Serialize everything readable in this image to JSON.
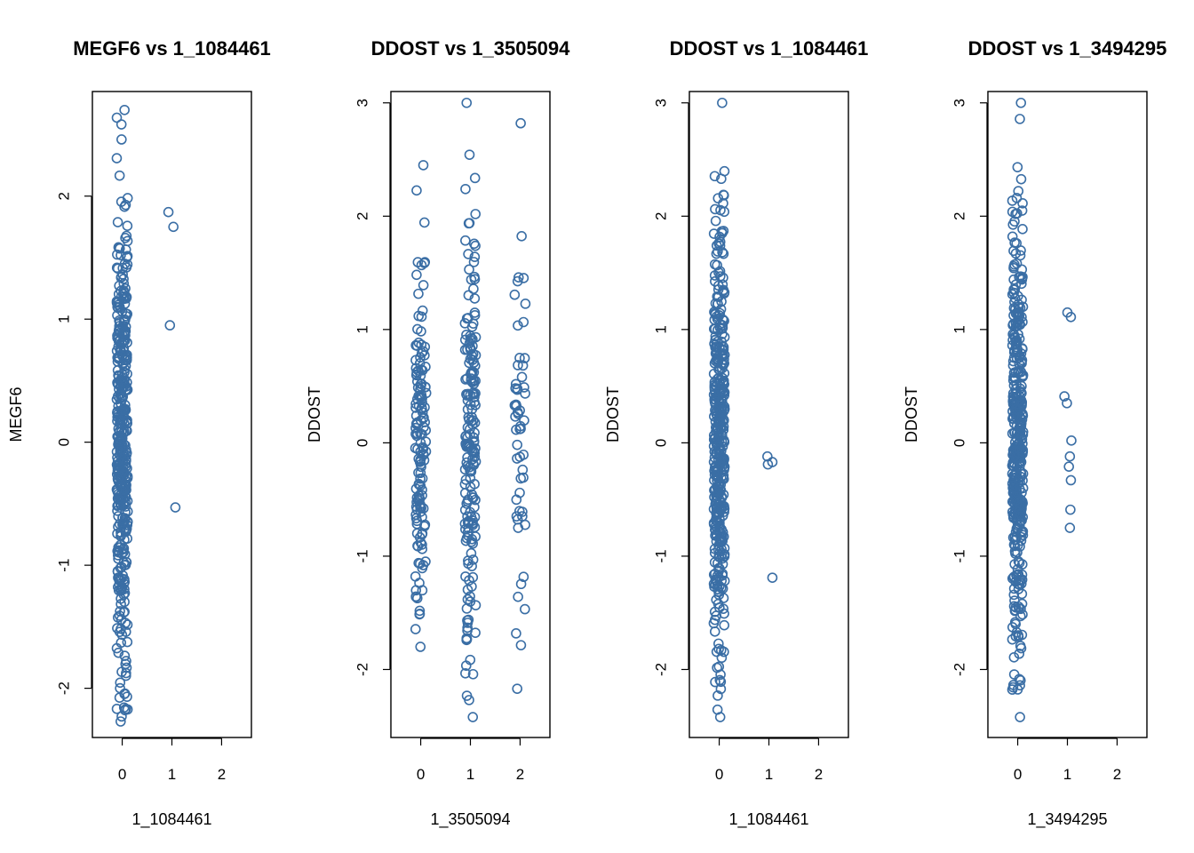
{
  "colors": {
    "point": "#3A6EA5",
    "axis": "#000000",
    "background": "#ffffff"
  },
  "chart_data": [
    {
      "type": "scatter",
      "title": "MEGF6 vs 1_1084461",
      "xlabel": "1_1084461",
      "ylabel": "MEGF6",
      "xlim": [
        -0.6,
        2.6
      ],
      "ylim": [
        -2.4,
        2.85
      ],
      "xticks": [
        0,
        1,
        2
      ],
      "yticks": [
        -2,
        -1,
        0,
        1,
        2
      ],
      "grid": false,
      "groups": [
        {
          "x": 0,
          "n": 420,
          "ymin": -2.27,
          "ymax": 2.7,
          "sd": 0.95
        },
        {
          "x": 1,
          "points": [
            [
              0.93,
              1.87
            ],
            [
              1.03,
              1.75
            ],
            [
              0.96,
              0.95
            ],
            [
              1.07,
              -0.53
            ]
          ]
        }
      ]
    },
    {
      "type": "scatter",
      "title": "DDOST vs 1_3505094",
      "xlabel": "1_3505094",
      "ylabel": "DDOST",
      "xlim": [
        -0.6,
        2.6
      ],
      "ylim": [
        -2.6,
        3.1
      ],
      "xticks": [
        0,
        1,
        2
      ],
      "yticks": [
        -2,
        -1,
        0,
        1,
        2,
        3
      ],
      "grid": false,
      "groups": [
        {
          "x": 0,
          "n": 150,
          "ymin": -1.8,
          "ymax": 2.45,
          "sd": 0.85
        },
        {
          "x": 1,
          "n": 190,
          "ymin": -2.42,
          "ymax": 3.0,
          "sd": 0.95
        },
        {
          "x": 2,
          "n": 55,
          "ymin": -2.17,
          "ymax": 2.82,
          "sd": 0.9
        }
      ]
    },
    {
      "type": "scatter",
      "title": "DDOST vs 1_1084461",
      "xlabel": "1_1084461",
      "ylabel": "DDOST",
      "xlim": [
        -0.6,
        2.6
      ],
      "ylim": [
        -2.6,
        3.1
      ],
      "xticks": [
        0,
        1,
        2
      ],
      "yticks": [
        -2,
        -1,
        0,
        1,
        2,
        3
      ],
      "grid": false,
      "groups": [
        {
          "x": 0,
          "n": 420,
          "ymin": -2.42,
          "ymax": 3.0,
          "sd": 0.95
        },
        {
          "x": 1,
          "points": [
            [
              0.97,
              -0.12
            ],
            [
              0.98,
              -0.19
            ],
            [
              1.07,
              -0.17
            ],
            [
              1.07,
              -1.19
            ]
          ]
        }
      ]
    },
    {
      "type": "scatter",
      "title": "DDOST vs 1_3494295",
      "xlabel": "1_3494295",
      "ylabel": "DDOST",
      "xlim": [
        -0.6,
        2.6
      ],
      "ylim": [
        -2.6,
        3.1
      ],
      "xticks": [
        0,
        1,
        2
      ],
      "yticks": [
        -2,
        -1,
        0,
        1,
        2,
        3
      ],
      "grid": false,
      "groups": [
        {
          "x": 0,
          "n": 410,
          "ymin": -2.42,
          "ymax": 3.0,
          "sd": 0.95
        },
        {
          "x": 1,
          "points": [
            [
              1.0,
              1.15
            ],
            [
              1.07,
              1.11
            ],
            [
              0.94,
              0.41
            ],
            [
              0.99,
              0.35
            ],
            [
              1.08,
              0.02
            ],
            [
              1.05,
              -0.12
            ],
            [
              1.03,
              -0.21
            ],
            [
              1.07,
              -0.33
            ],
            [
              1.06,
              -0.59
            ],
            [
              1.05,
              -0.75
            ]
          ]
        }
      ]
    }
  ]
}
